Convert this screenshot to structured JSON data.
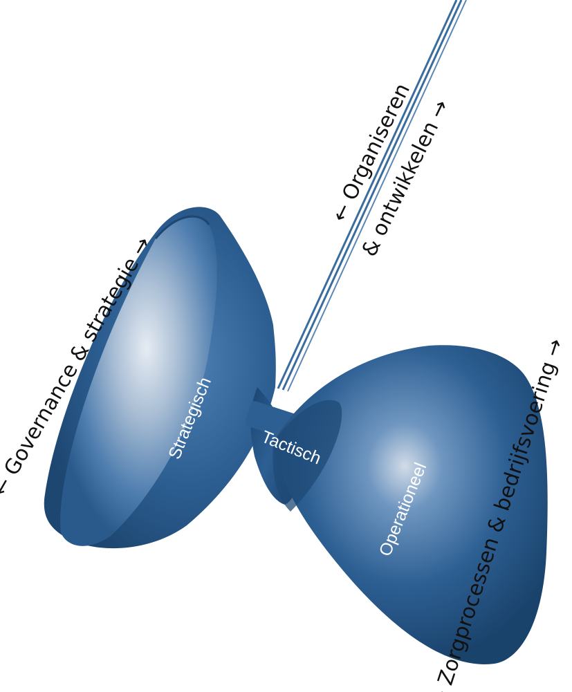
{
  "labels": {
    "strategisch": "Strategisch",
    "tactisch": "Tactisch",
    "operationeel": "Operationeel"
  },
  "outer_labels": {
    "governance": "← Governance & strategie →",
    "organiseren_line1": "← Organiseren",
    "organiseren_line2": "& ontwikkelen →",
    "zorgprocessen": "← Zorgprocessen & bedrijfsvoering →"
  },
  "colors": {
    "body": "#2d5f93",
    "body_dark": "#173f66",
    "highlight": "#cfd9e5",
    "string": "#3a6c9e",
    "text_inner": "#ffffff",
    "text_outer": "#111111"
  }
}
